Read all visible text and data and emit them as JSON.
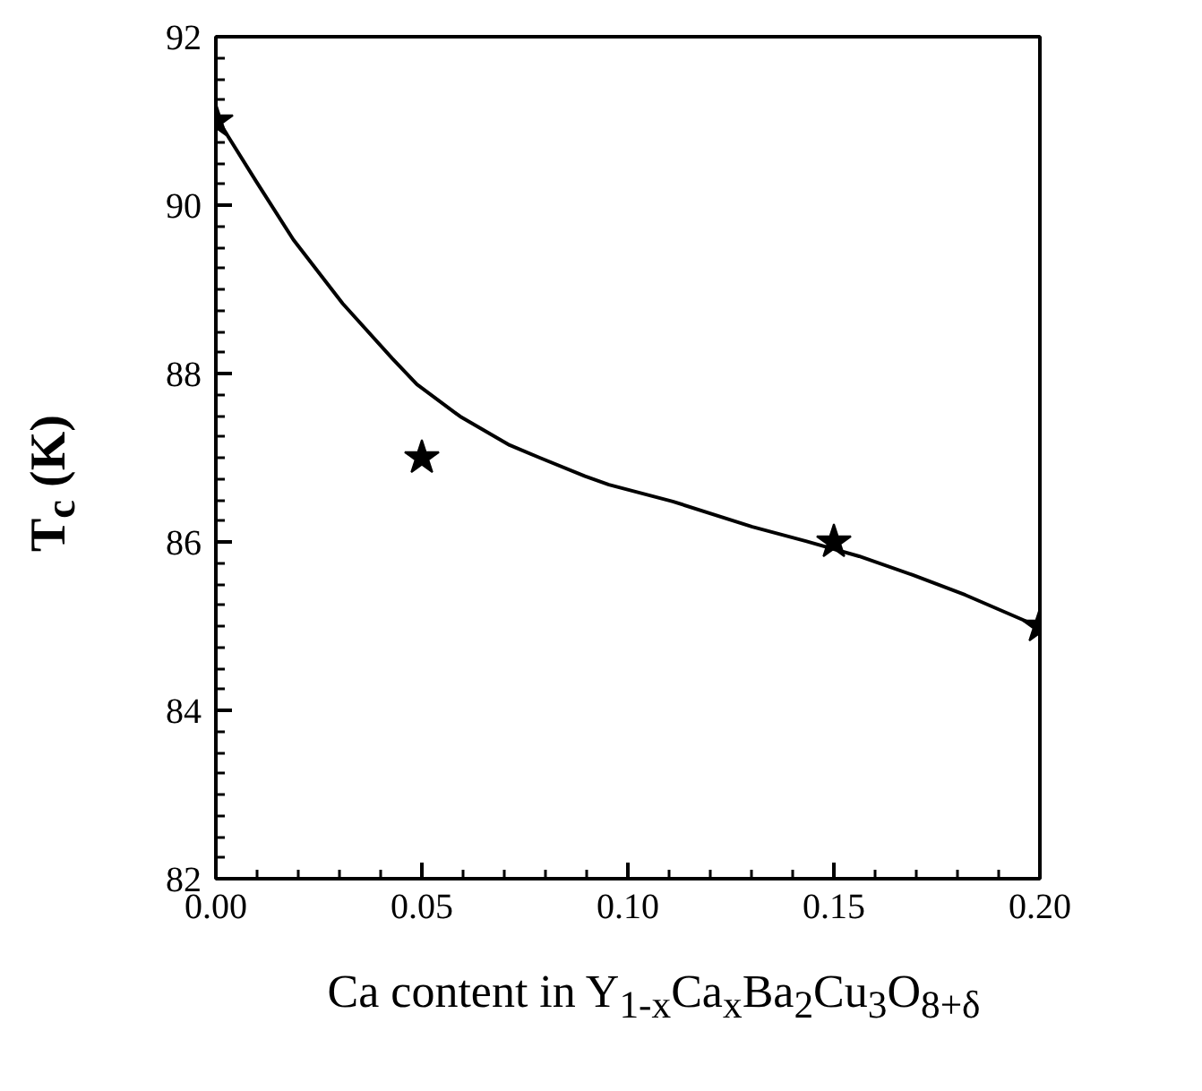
{
  "chart_data": {
    "type": "line",
    "xlabel": "Ca content in Y$_{1-x}$Ca$_{x}$Ba$_{2}$Cu$_{3}$O$_{8+δ}$",
    "ylabel": "T$_{c}$ (K)",
    "xlim": [
      0,
      0.2
    ],
    "ylim": [
      82,
      92
    ],
    "xticks": [
      {
        "value": 0,
        "label": "0.00"
      },
      {
        "value": 0.05,
        "label": "0.05"
      },
      {
        "value": 0.1,
        "label": "0.10"
      },
      {
        "value": 0.15,
        "label": "0.15"
      },
      {
        "value": 0.2,
        "label": "0.20"
      }
    ],
    "yticks": [
      82,
      84,
      86,
      88,
      90,
      92
    ],
    "series": [
      {
        "color": "#000000",
        "marker": "none",
        "x": [
          0,
          0.0098,
          0.0188,
          0.0308,
          0.0428,
          0.0488,
          0.0593,
          0.0713,
          0.0786,
          0.0896,
          0.0954,
          0.1109,
          0.1302,
          0.1432,
          0.1561,
          0.169,
          0.1819,
          0.1994
        ],
        "values": [
          91.05,
          90.28,
          89.59,
          88.83,
          88.18,
          87.87,
          87.49,
          87.15,
          87.0,
          86.78,
          86.68,
          86.48,
          86.18,
          86.01,
          85.83,
          85.61,
          85.37,
          85.0
        ]
      },
      {
        "type": "scatter",
        "color": "#000000",
        "marker": "star",
        "x": [
          0,
          0.05,
          0.15,
          0.2
        ],
        "values": [
          91,
          87,
          86,
          85
        ]
      }
    ]
  }
}
